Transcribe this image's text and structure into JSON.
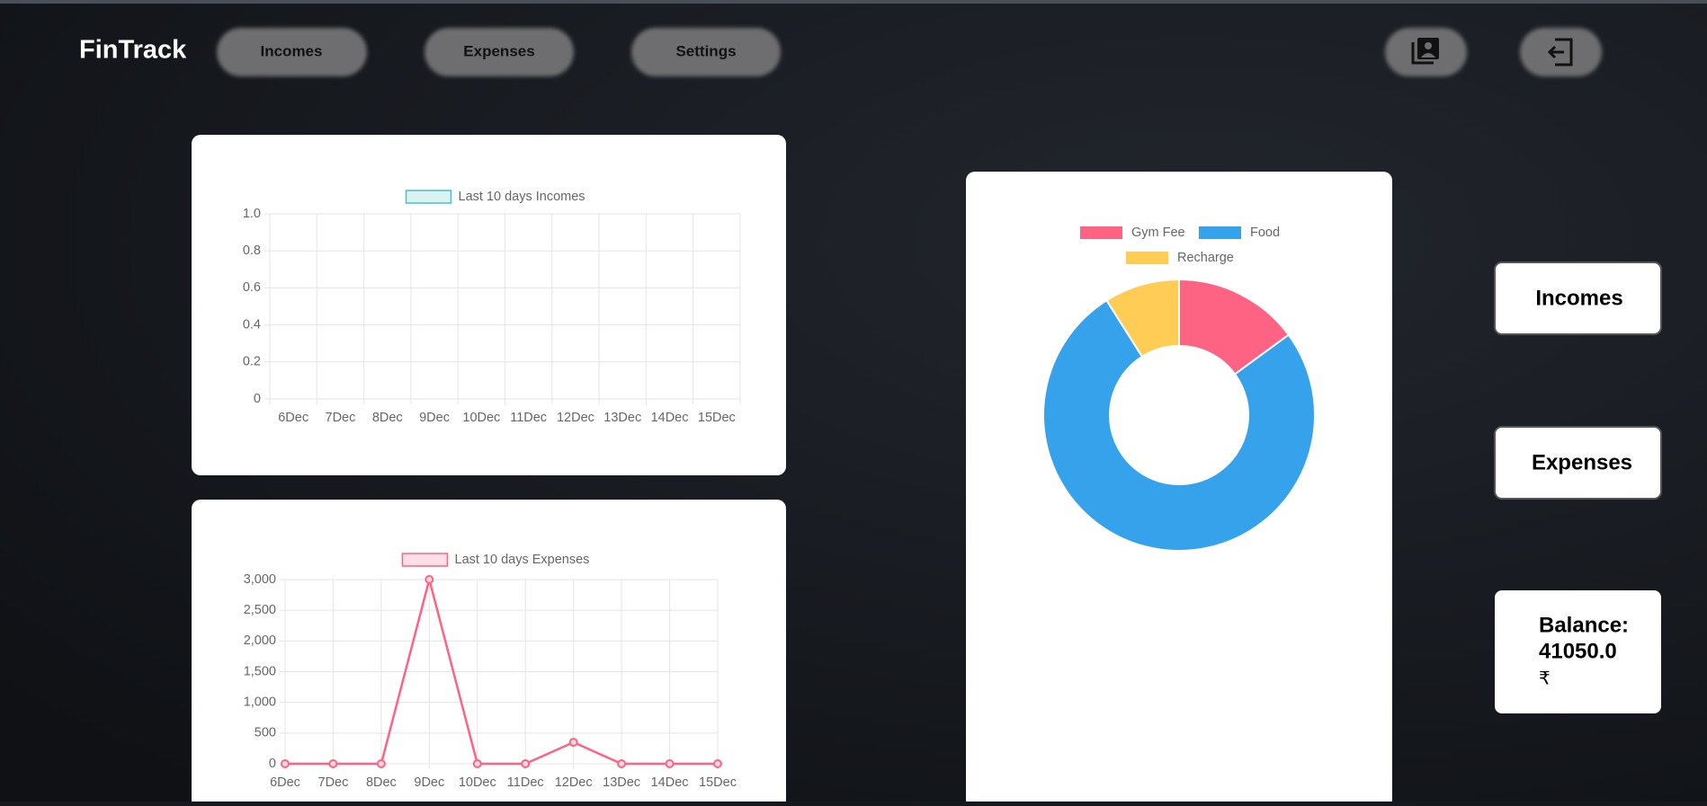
{
  "nav": {
    "brand": "FinTrack",
    "links": [
      "Incomes",
      "Expenses",
      "Settings"
    ]
  },
  "chart_data": [
    {
      "type": "line",
      "legend": "Last 10 days Incomes",
      "categories": [
        "6Dec",
        "7Dec",
        "8Dec",
        "9Dec",
        "10Dec",
        "11Dec",
        "12Dec",
        "13Dec",
        "14Dec",
        "15Dec"
      ],
      "series": [
        {
          "name": "Last 10 days Incomes",
          "color": "#4bc0c0",
          "values": [
            null,
            null,
            null,
            null,
            null,
            null,
            null,
            null,
            null,
            null
          ]
        }
      ],
      "ylim": [
        0,
        1
      ],
      "yticks": [
        0,
        0.2,
        0.4,
        0.6,
        0.8,
        {
          "value": 1,
          "label": "1.0"
        }
      ],
      "grid": true
    },
    {
      "type": "line",
      "legend": "Last 10 days Expenses",
      "categories": [
        "6Dec",
        "7Dec",
        "8Dec",
        "9Dec",
        "10Dec",
        "11Dec",
        "12Dec",
        "13Dec",
        "14Dec",
        "15Dec"
      ],
      "series": [
        {
          "name": "Last 10 days Expenses",
          "color": "#ff6384",
          "values": [
            0,
            0,
            0,
            3000,
            0,
            0,
            350,
            0,
            0,
            0
          ]
        }
      ],
      "ylim": [
        0,
        3000
      ],
      "yticks": [
        0,
        500,
        {
          "value": 1000,
          "label": "1,000"
        },
        {
          "value": 1500,
          "label": "1,500"
        },
        {
          "value": 2000,
          "label": "2,000"
        },
        {
          "value": 2500,
          "label": "2,500"
        },
        {
          "value": 3000,
          "label": "3,000"
        }
      ],
      "grid": true
    },
    {
      "type": "doughnut",
      "categories": [
        "Gym Fee",
        "Food",
        "Recharge"
      ],
      "values": [
        500,
        2550,
        300
      ],
      "colors": [
        "#ff6384",
        "#36a2eb",
        "#ffcd56"
      ]
    }
  ],
  "cards": {
    "incomes": "Incomes",
    "expenses": "Expenses",
    "balance_label": "Balance:",
    "balance_value": "41050.0",
    "currency": "₹"
  }
}
